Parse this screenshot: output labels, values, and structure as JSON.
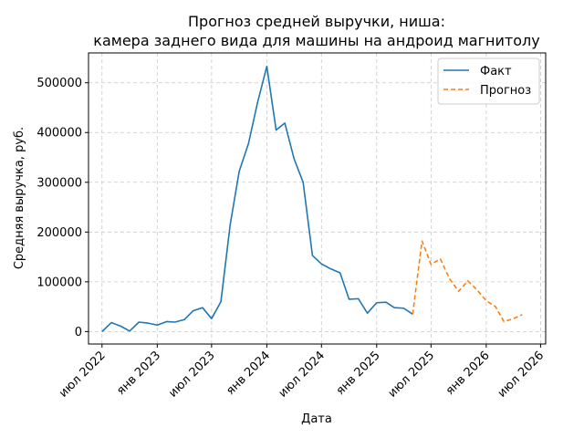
{
  "chart_data": {
    "type": "line",
    "title_line1": "Прогноз средней выручки, ниша:",
    "title_line2": "камера заднего вида для машины на андроид магнитолу",
    "xlabel": "Дата",
    "ylabel": "Средняя выручка, руб.",
    "ylim": [
      -25000,
      560000
    ],
    "xlim": [
      "2022-05-17",
      "2026-07-18"
    ],
    "grid": true,
    "legend_position": "top-right",
    "x_ticks": [
      {
        "date": "2022-07-01",
        "label": "июл 2022"
      },
      {
        "date": "2023-01-01",
        "label": "янв 2023"
      },
      {
        "date": "2023-07-01",
        "label": "июл 2023"
      },
      {
        "date": "2024-01-01",
        "label": "янв 2024"
      },
      {
        "date": "2024-07-01",
        "label": "июл 2024"
      },
      {
        "date": "2025-01-01",
        "label": "янв 2025"
      },
      {
        "date": "2025-07-01",
        "label": "июл 2025"
      },
      {
        "date": "2026-01-01",
        "label": "янв 2026"
      },
      {
        "date": "2026-07-01",
        "label": "июл 2026"
      }
    ],
    "y_ticks": [
      {
        "value": 0,
        "label": "0"
      },
      {
        "value": 100000,
        "label": "100000"
      },
      {
        "value": 200000,
        "label": "200000"
      },
      {
        "value": 300000,
        "label": "300000"
      },
      {
        "value": 400000,
        "label": "400000"
      },
      {
        "value": 500000,
        "label": "500000"
      }
    ],
    "series": [
      {
        "name": "Факт",
        "color": "#1f77b4",
        "style": "solid",
        "points": [
          {
            "x": "2022-07-01",
            "y": 0
          },
          {
            "x": "2022-08-01",
            "y": 18000
          },
          {
            "x": "2022-09-01",
            "y": 11000
          },
          {
            "x": "2022-10-01",
            "y": 1000
          },
          {
            "x": "2022-11-01",
            "y": 19000
          },
          {
            "x": "2022-12-01",
            "y": 17000
          },
          {
            "x": "2023-01-01",
            "y": 13000
          },
          {
            "x": "2023-02-01",
            "y": 20000
          },
          {
            "x": "2023-03-01",
            "y": 19000
          },
          {
            "x": "2023-04-01",
            "y": 24000
          },
          {
            "x": "2023-05-01",
            "y": 42000
          },
          {
            "x": "2023-06-01",
            "y": 48000
          },
          {
            "x": "2023-07-01",
            "y": 26000
          },
          {
            "x": "2023-08-01",
            "y": 60000
          },
          {
            "x": "2023-09-01",
            "y": 215000
          },
          {
            "x": "2023-10-01",
            "y": 322000
          },
          {
            "x": "2023-11-01",
            "y": 378000
          },
          {
            "x": "2023-12-01",
            "y": 460000
          },
          {
            "x": "2024-01-01",
            "y": 533000
          },
          {
            "x": "2024-02-01",
            "y": 405000
          },
          {
            "x": "2024-03-01",
            "y": 419000
          },
          {
            "x": "2024-04-01",
            "y": 347000
          },
          {
            "x": "2024-05-01",
            "y": 300000
          },
          {
            "x": "2024-06-01",
            "y": 153000
          },
          {
            "x": "2024-07-01",
            "y": 136000
          },
          {
            "x": "2024-08-01",
            "y": 126000
          },
          {
            "x": "2024-09-01",
            "y": 118000
          },
          {
            "x": "2024-10-01",
            "y": 65000
          },
          {
            "x": "2024-11-01",
            "y": 66000
          },
          {
            "x": "2024-12-01",
            "y": 37000
          },
          {
            "x": "2025-01-01",
            "y": 58000
          },
          {
            "x": "2025-02-01",
            "y": 59000
          },
          {
            "x": "2025-03-01",
            "y": 48000
          },
          {
            "x": "2025-04-01",
            "y": 47000
          },
          {
            "x": "2025-05-01",
            "y": 35000
          }
        ]
      },
      {
        "name": "Прогноз",
        "color": "#ff7f0e",
        "style": "dashed",
        "points": [
          {
            "x": "2025-05-01",
            "y": 35000
          },
          {
            "x": "2025-06-01",
            "y": 182000
          },
          {
            "x": "2025-07-01",
            "y": 135000
          },
          {
            "x": "2025-08-01",
            "y": 146000
          },
          {
            "x": "2025-09-01",
            "y": 106000
          },
          {
            "x": "2025-10-01",
            "y": 81000
          },
          {
            "x": "2025-11-01",
            "y": 102000
          },
          {
            "x": "2025-12-01",
            "y": 84000
          },
          {
            "x": "2026-01-01",
            "y": 62000
          },
          {
            "x": "2026-02-01",
            "y": 50000
          },
          {
            "x": "2026-03-01",
            "y": 20000
          },
          {
            "x": "2026-04-01",
            "y": 26000
          },
          {
            "x": "2026-05-01",
            "y": 34000
          }
        ]
      }
    ]
  }
}
